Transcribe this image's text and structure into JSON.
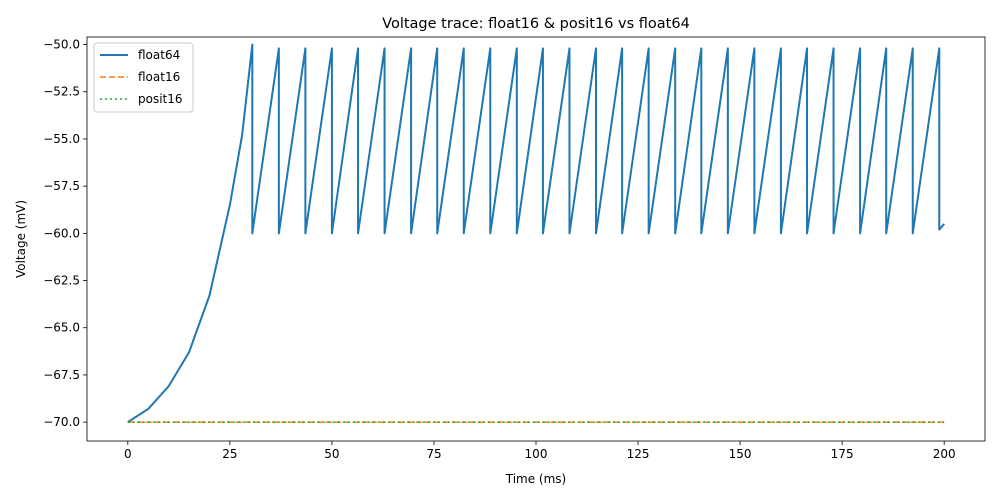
{
  "chart_data": {
    "type": "line",
    "title": "Voltage trace: float16 & posit16 vs float64",
    "xlabel": "Time (ms)",
    "ylabel": "Voltage (mV)",
    "xlim": [
      -10,
      210
    ],
    "ylim": [
      -71.0,
      -49.6
    ],
    "xticks": [
      0,
      25,
      50,
      75,
      100,
      125,
      150,
      175,
      200
    ],
    "xtick_labels": [
      "0",
      "25",
      "50",
      "75",
      "100",
      "125",
      "150",
      "175",
      "200"
    ],
    "yticks": [
      -70.0,
      -67.5,
      -65.0,
      -62.5,
      -60.0,
      -57.5,
      -55.0,
      -52.5,
      -50.0
    ],
    "ytick_labels": [
      "−70.0",
      "−67.5",
      "−65.0",
      "−62.5",
      "−60.0",
      "−57.5",
      "−55.0",
      "−52.5",
      "−50.0"
    ],
    "grid": false,
    "legend_position": "top-left",
    "series": [
      {
        "name": "float64",
        "color": "#1f77b4",
        "style": "solid",
        "x": [
          0,
          5,
          10,
          15,
          20,
          25,
          28,
          30.5,
          30.5,
          37.0,
          37.0,
          43.5,
          43.5,
          50.0,
          50.0,
          56.4,
          56.4,
          62.9,
          62.9,
          69.4,
          69.4,
          75.8,
          75.8,
          82.3,
          82.3,
          88.8,
          88.8,
          95.3,
          95.3,
          101.7,
          101.7,
          108.2,
          108.2,
          114.7,
          114.7,
          121.1,
          121.1,
          127.6,
          127.6,
          134.1,
          134.1,
          140.5,
          140.5,
          147.0,
          147.0,
          153.5,
          153.5,
          160.0,
          160.0,
          166.4,
          166.4,
          172.9,
          172.9,
          179.4,
          179.4,
          185.8,
          185.8,
          192.3,
          192.3,
          198.8,
          198.8,
          200.0
        ],
        "y": [
          -70.0,
          -69.3,
          -68.1,
          -66.3,
          -63.3,
          -58.5,
          -54.8,
          -50.0,
          -60.0,
          -50.2,
          -60.0,
          -50.2,
          -60.0,
          -50.2,
          -60.0,
          -50.2,
          -60.0,
          -50.2,
          -60.0,
          -50.2,
          -60.0,
          -50.2,
          -60.0,
          -50.2,
          -60.0,
          -50.2,
          -60.0,
          -50.2,
          -60.0,
          -50.2,
          -60.0,
          -50.2,
          -60.0,
          -50.2,
          -60.0,
          -50.2,
          -60.0,
          -50.2,
          -60.0,
          -50.2,
          -60.0,
          -50.2,
          -60.0,
          -50.2,
          -60.0,
          -50.2,
          -60.0,
          -50.2,
          -60.0,
          -50.2,
          -60.0,
          -50.2,
          -60.0,
          -50.2,
          -60.0,
          -50.2,
          -60.0,
          -50.2,
          -60.0,
          -50.2,
          -59.8,
          -59.5
        ]
      },
      {
        "name": "float16",
        "color": "#ff7f0e",
        "style": "dashed",
        "x": [
          0,
          200
        ],
        "y": [
          -70.0,
          -70.0
        ]
      },
      {
        "name": "posit16",
        "color": "#2ca02c",
        "style": "dotted",
        "x": [
          0,
          200
        ],
        "y": [
          -70.0,
          -70.0
        ]
      }
    ]
  }
}
